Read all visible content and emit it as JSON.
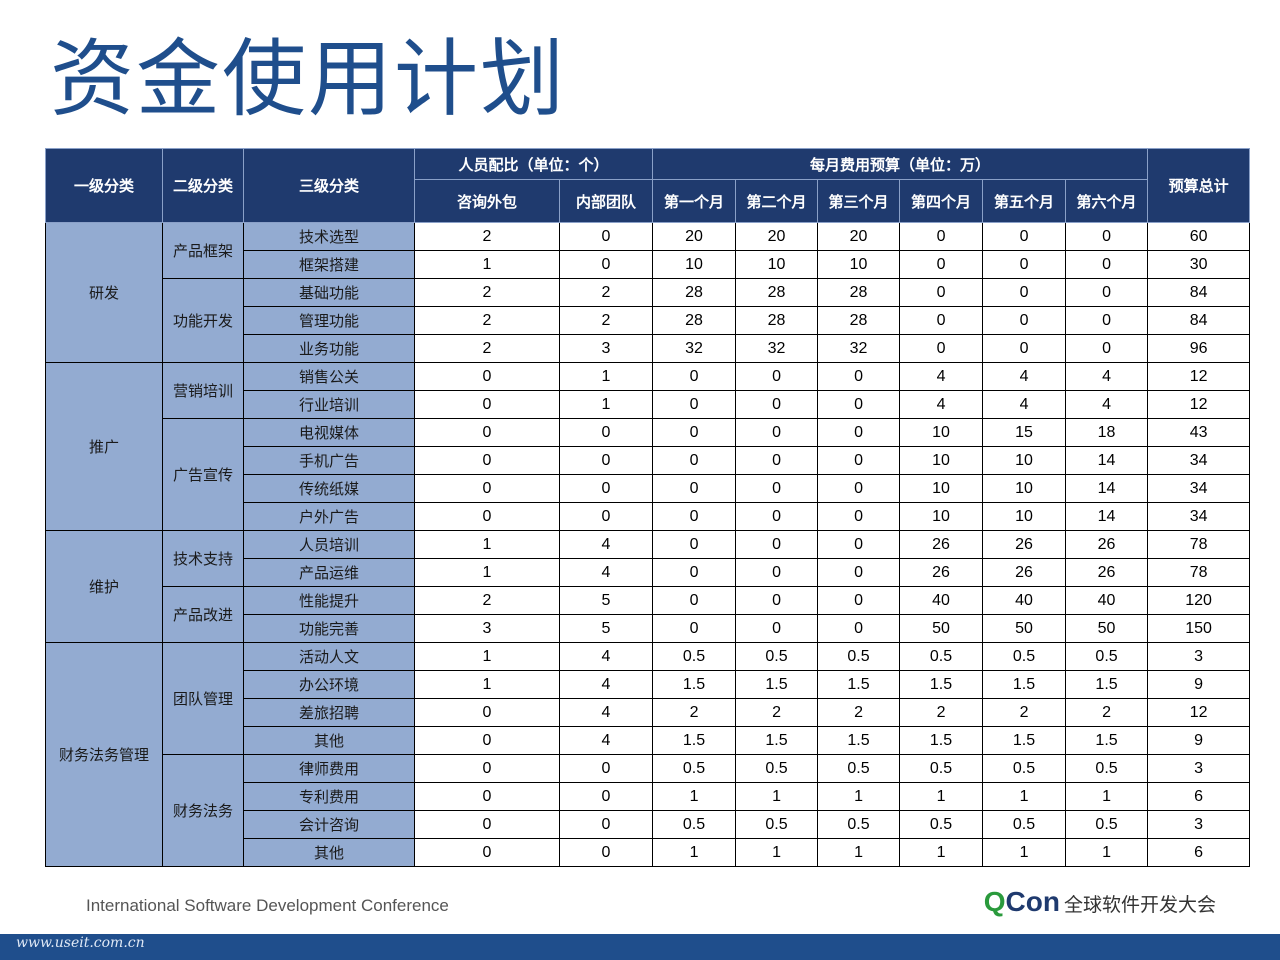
{
  "title": "资金使用计划",
  "headers": {
    "lv1": "一级分类",
    "lv2": "二级分类",
    "lv3": "三级分类",
    "group_people": "人员配比（单位：个）",
    "group_budget": "每月费用预算（单位：万）",
    "total": "预算总计",
    "cols": [
      "咨询外包",
      "内部团队",
      "第一个月",
      "第二个月",
      "第三个月",
      "第四个月",
      "第五个月",
      "第六个月"
    ]
  },
  "rows": [
    {
      "l1": "研发",
      "l2": "产品框架",
      "l3": "技术选型",
      "v": [
        "2",
        "0",
        "20",
        "20",
        "20",
        "0",
        "0",
        "0",
        "60"
      ]
    },
    {
      "l1": "研发",
      "l2": "产品框架",
      "l3": "框架搭建",
      "v": [
        "1",
        "0",
        "10",
        "10",
        "10",
        "0",
        "0",
        "0",
        "30"
      ]
    },
    {
      "l1": "研发",
      "l2": "功能开发",
      "l3": "基础功能",
      "v": [
        "2",
        "2",
        "28",
        "28",
        "28",
        "0",
        "0",
        "0",
        "84"
      ]
    },
    {
      "l1": "研发",
      "l2": "功能开发",
      "l3": "管理功能",
      "v": [
        "2",
        "2",
        "28",
        "28",
        "28",
        "0",
        "0",
        "0",
        "84"
      ]
    },
    {
      "l1": "研发",
      "l2": "功能开发",
      "l3": "业务功能",
      "v": [
        "2",
        "3",
        "32",
        "32",
        "32",
        "0",
        "0",
        "0",
        "96"
      ]
    },
    {
      "l1": "推广",
      "l2": "营销培训",
      "l3": "销售公关",
      "v": [
        "0",
        "1",
        "0",
        "0",
        "0",
        "4",
        "4",
        "4",
        "12"
      ]
    },
    {
      "l1": "推广",
      "l2": "营销培训",
      "l3": "行业培训",
      "v": [
        "0",
        "1",
        "0",
        "0",
        "0",
        "4",
        "4",
        "4",
        "12"
      ]
    },
    {
      "l1": "推广",
      "l2": "广告宣传",
      "l3": "电视媒体",
      "v": [
        "0",
        "0",
        "0",
        "0",
        "0",
        "10",
        "15",
        "18",
        "43"
      ]
    },
    {
      "l1": "推广",
      "l2": "广告宣传",
      "l3": "手机广告",
      "v": [
        "0",
        "0",
        "0",
        "0",
        "0",
        "10",
        "10",
        "14",
        "34"
      ]
    },
    {
      "l1": "推广",
      "l2": "广告宣传",
      "l3": "传统纸媒",
      "v": [
        "0",
        "0",
        "0",
        "0",
        "0",
        "10",
        "10",
        "14",
        "34"
      ]
    },
    {
      "l1": "推广",
      "l2": "广告宣传",
      "l3": "户外广告",
      "v": [
        "0",
        "0",
        "0",
        "0",
        "0",
        "10",
        "10",
        "14",
        "34"
      ]
    },
    {
      "l1": "维护",
      "l2": "技术支持",
      "l3": "人员培训",
      "v": [
        "1",
        "4",
        "0",
        "0",
        "0",
        "26",
        "26",
        "26",
        "78"
      ]
    },
    {
      "l1": "维护",
      "l2": "技术支持",
      "l3": "产品运维",
      "v": [
        "1",
        "4",
        "0",
        "0",
        "0",
        "26",
        "26",
        "26",
        "78"
      ]
    },
    {
      "l1": "维护",
      "l2": "产品改进",
      "l3": "性能提升",
      "v": [
        "2",
        "5",
        "0",
        "0",
        "0",
        "40",
        "40",
        "40",
        "120"
      ]
    },
    {
      "l1": "维护",
      "l2": "产品改进",
      "l3": "功能完善",
      "v": [
        "3",
        "5",
        "0",
        "0",
        "0",
        "50",
        "50",
        "50",
        "150"
      ]
    },
    {
      "l1": "财务法务管理",
      "l2": "团队管理",
      "l3": "活动人文",
      "v": [
        "1",
        "4",
        "0.5",
        "0.5",
        "0.5",
        "0.5",
        "0.5",
        "0.5",
        "3"
      ]
    },
    {
      "l1": "财务法务管理",
      "l2": "团队管理",
      "l3": "办公环境",
      "v": [
        "1",
        "4",
        "1.5",
        "1.5",
        "1.5",
        "1.5",
        "1.5",
        "1.5",
        "9"
      ]
    },
    {
      "l1": "财务法务管理",
      "l2": "团队管理",
      "l3": "差旅招聘",
      "v": [
        "0",
        "4",
        "2",
        "2",
        "2",
        "2",
        "2",
        "2",
        "12"
      ]
    },
    {
      "l1": "财务法务管理",
      "l2": "团队管理",
      "l3": "其他",
      "v": [
        "0",
        "4",
        "1.5",
        "1.5",
        "1.5",
        "1.5",
        "1.5",
        "1.5",
        "9"
      ]
    },
    {
      "l1": "财务法务管理",
      "l2": "财务法务",
      "l3": "律师费用",
      "v": [
        "0",
        "0",
        "0.5",
        "0.5",
        "0.5",
        "0.5",
        "0.5",
        "0.5",
        "3"
      ]
    },
    {
      "l1": "财务法务管理",
      "l2": "财务法务",
      "l3": "专利费用",
      "v": [
        "0",
        "0",
        "1",
        "1",
        "1",
        "1",
        "1",
        "1",
        "6"
      ]
    },
    {
      "l1": "财务法务管理",
      "l2": "财务法务",
      "l3": "会计咨询",
      "v": [
        "0",
        "0",
        "0.5",
        "0.5",
        "0.5",
        "0.5",
        "0.5",
        "0.5",
        "3"
      ]
    },
    {
      "l1": "财务法务管理",
      "l2": "财务法务",
      "l3": "其他",
      "v": [
        "0",
        "0",
        "1",
        "1",
        "1",
        "1",
        "1",
        "1",
        "6"
      ]
    }
  ],
  "footer": {
    "conference": "International Software Development Conference",
    "brand_q": "Q",
    "brand_con": "Con",
    "brand_sub": "全球软件开发大会",
    "watermark": "www.useit.com.cn"
  },
  "colors": {
    "title": "#1f4e8c",
    "header_bg": "#1f3a6e",
    "category_bg": "#93abd1",
    "brand_green": "#2a9a3c",
    "bottom_bar": "#1f4e8c"
  }
}
